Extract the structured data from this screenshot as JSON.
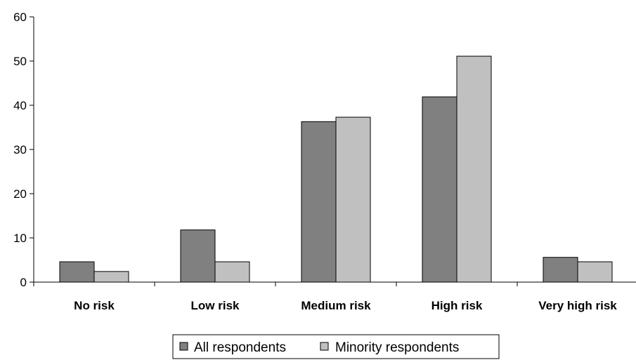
{
  "chart_data": {
    "type": "bar",
    "categories": [
      "No risk",
      "Low risk",
      "Medium risk",
      "High risk",
      "Very high risk"
    ],
    "series": [
      {
        "name": "All respondents",
        "values": [
          4.6,
          11.8,
          36.3,
          41.9,
          5.6
        ],
        "color": "#808080"
      },
      {
        "name": "Minority respondents",
        "values": [
          2.4,
          4.6,
          37.3,
          51.1,
          4.6
        ],
        "color": "#c0c0c0"
      }
    ],
    "yticks": [
      "0",
      "10",
      "20",
      "30",
      "40",
      "50",
      "60"
    ],
    "ylim": [
      0,
      60
    ],
    "grid": false,
    "legend_position": "bottom"
  }
}
